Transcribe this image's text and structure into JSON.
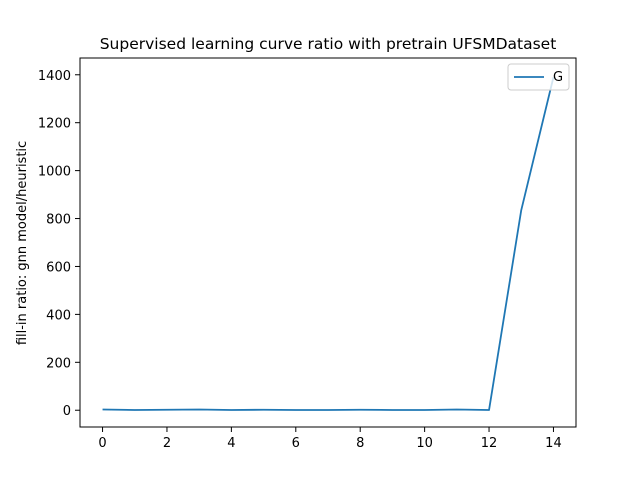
{
  "chart_data": {
    "type": "line",
    "title": "Supervised learning curve ratio with pretrain UFSMDataset",
    "xlabel": "",
    "ylabel": "fill-in ratio: gnn model/heuristic",
    "xlim": [
      -0.7,
      14.7
    ],
    "ylim": [
      -70,
      1470
    ],
    "xticks": [
      0,
      2,
      4,
      6,
      8,
      10,
      12,
      14
    ],
    "yticks": [
      0,
      200,
      400,
      600,
      800,
      1000,
      1200,
      1400
    ],
    "grid": false,
    "legend_position": "top-right",
    "series": [
      {
        "name": "G",
        "color": "#1f77b4",
        "x": [
          0,
          1,
          2,
          3,
          4,
          5,
          6,
          7,
          8,
          9,
          10,
          11,
          12,
          13,
          14
        ],
        "y": [
          3,
          1,
          2,
          3,
          1,
          2,
          1,
          1,
          2,
          1,
          1,
          3,
          1,
          835,
          1390
        ]
      }
    ]
  }
}
